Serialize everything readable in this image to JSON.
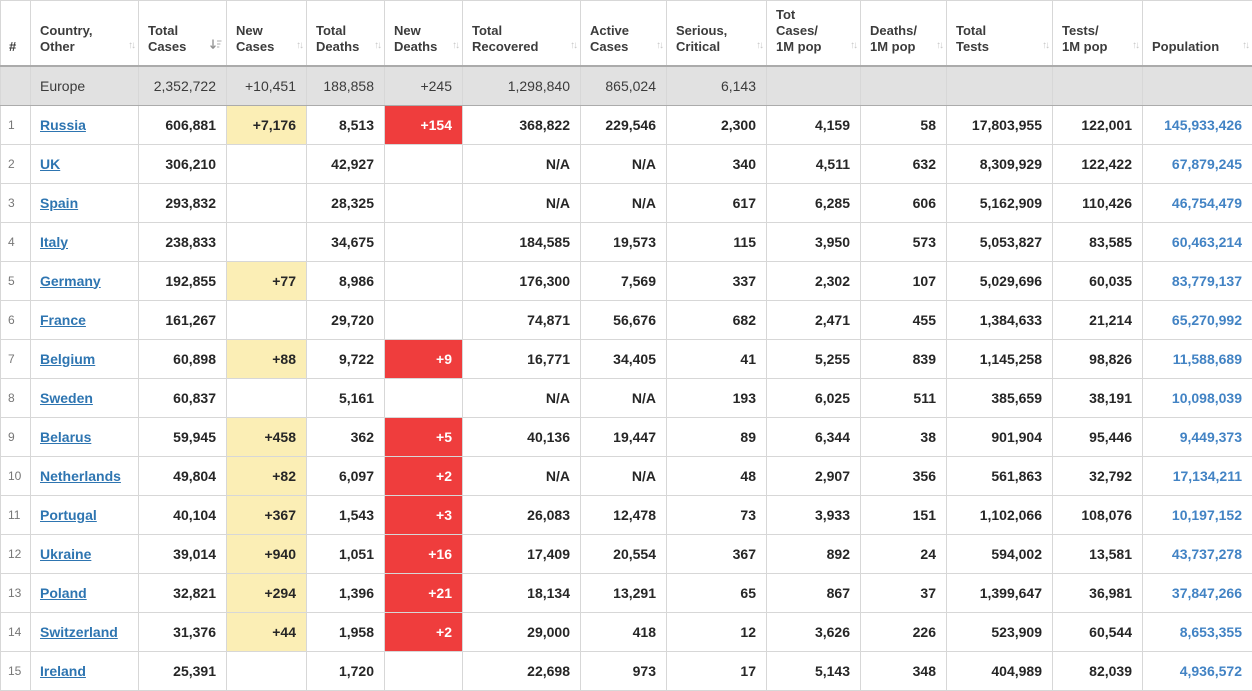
{
  "colors": {
    "new_cases_bg": "#FBEEB5",
    "new_deaths_bg": "#EF3D3D",
    "country_link": "#2E75B1",
    "population_link": "#4283C4",
    "summary_row_bg": "#E1E1E1",
    "grid_border": "#D7D7D7"
  },
  "table": {
    "columns": [
      {
        "id": "rank",
        "label": "#",
        "sort": "none"
      },
      {
        "id": "country",
        "label": "Country,\nOther",
        "sort": "both"
      },
      {
        "id": "total_cases",
        "label": "Total\nCases",
        "sort": "desc"
      },
      {
        "id": "new_cases",
        "label": "New\nCases",
        "sort": "both"
      },
      {
        "id": "total_deaths",
        "label": "Total\nDeaths",
        "sort": "both"
      },
      {
        "id": "new_deaths",
        "label": "New\nDeaths",
        "sort": "both"
      },
      {
        "id": "total_recovered",
        "label": "Total\nRecovered",
        "sort": "both"
      },
      {
        "id": "active_cases",
        "label": "Active\nCases",
        "sort": "both"
      },
      {
        "id": "serious_critical",
        "label": "Serious,\nCritical",
        "sort": "both"
      },
      {
        "id": "cases_per_1m",
        "label": "Tot Cases/\n1M pop",
        "sort": "both"
      },
      {
        "id": "deaths_per_1m",
        "label": "Deaths/\n1M pop",
        "sort": "both"
      },
      {
        "id": "total_tests",
        "label": "Total\nTests",
        "sort": "both"
      },
      {
        "id": "tests_per_1m",
        "label": "Tests/\n1M pop",
        "sort": "both"
      },
      {
        "id": "population",
        "label": "Population",
        "sort": "both"
      }
    ],
    "summary_row": {
      "rank": "",
      "country": "Europe",
      "total_cases": "2,352,722",
      "new_cases": "+10,451",
      "total_deaths": "188,858",
      "new_deaths": "+245",
      "total_recovered": "1,298,840",
      "active_cases": "865,024",
      "serious_critical": "6,143",
      "cases_per_1m": "",
      "deaths_per_1m": "",
      "total_tests": "",
      "tests_per_1m": "",
      "population": ""
    },
    "rows": [
      {
        "rank": "1",
        "country": "Russia",
        "total_cases": "606,881",
        "new_cases": "+7,176",
        "total_deaths": "8,513",
        "new_deaths": "+154",
        "total_recovered": "368,822",
        "active_cases": "229,546",
        "serious_critical": "2,300",
        "cases_per_1m": "4,159",
        "deaths_per_1m": "58",
        "total_tests": "17,803,955",
        "tests_per_1m": "122,001",
        "population": "145,933,426"
      },
      {
        "rank": "2",
        "country": "UK",
        "total_cases": "306,210",
        "new_cases": "",
        "total_deaths": "42,927",
        "new_deaths": "",
        "total_recovered": "N/A",
        "active_cases": "N/A",
        "serious_critical": "340",
        "cases_per_1m": "4,511",
        "deaths_per_1m": "632",
        "total_tests": "8,309,929",
        "tests_per_1m": "122,422",
        "population": "67,879,245"
      },
      {
        "rank": "3",
        "country": "Spain",
        "total_cases": "293,832",
        "new_cases": "",
        "total_deaths": "28,325",
        "new_deaths": "",
        "total_recovered": "N/A",
        "active_cases": "N/A",
        "serious_critical": "617",
        "cases_per_1m": "6,285",
        "deaths_per_1m": "606",
        "total_tests": "5,162,909",
        "tests_per_1m": "110,426",
        "population": "46,754,479"
      },
      {
        "rank": "4",
        "country": "Italy",
        "total_cases": "238,833",
        "new_cases": "",
        "total_deaths": "34,675",
        "new_deaths": "",
        "total_recovered": "184,585",
        "active_cases": "19,573",
        "serious_critical": "115",
        "cases_per_1m": "3,950",
        "deaths_per_1m": "573",
        "total_tests": "5,053,827",
        "tests_per_1m": "83,585",
        "population": "60,463,214"
      },
      {
        "rank": "5",
        "country": "Germany",
        "total_cases": "192,855",
        "new_cases": "+77",
        "total_deaths": "8,986",
        "new_deaths": "",
        "total_recovered": "176,300",
        "active_cases": "7,569",
        "serious_critical": "337",
        "cases_per_1m": "2,302",
        "deaths_per_1m": "107",
        "total_tests": "5,029,696",
        "tests_per_1m": "60,035",
        "population": "83,779,137"
      },
      {
        "rank": "6",
        "country": "France",
        "total_cases": "161,267",
        "new_cases": "",
        "total_deaths": "29,720",
        "new_deaths": "",
        "total_recovered": "74,871",
        "active_cases": "56,676",
        "serious_critical": "682",
        "cases_per_1m": "2,471",
        "deaths_per_1m": "455",
        "total_tests": "1,384,633",
        "tests_per_1m": "21,214",
        "population": "65,270,992"
      },
      {
        "rank": "7",
        "country": "Belgium",
        "total_cases": "60,898",
        "new_cases": "+88",
        "total_deaths": "9,722",
        "new_deaths": "+9",
        "total_recovered": "16,771",
        "active_cases": "34,405",
        "serious_critical": "41",
        "cases_per_1m": "5,255",
        "deaths_per_1m": "839",
        "total_tests": "1,145,258",
        "tests_per_1m": "98,826",
        "population": "11,588,689"
      },
      {
        "rank": "8",
        "country": "Sweden",
        "total_cases": "60,837",
        "new_cases": "",
        "total_deaths": "5,161",
        "new_deaths": "",
        "total_recovered": "N/A",
        "active_cases": "N/A",
        "serious_critical": "193",
        "cases_per_1m": "6,025",
        "deaths_per_1m": "511",
        "total_tests": "385,659",
        "tests_per_1m": "38,191",
        "population": "10,098,039"
      },
      {
        "rank": "9",
        "country": "Belarus",
        "total_cases": "59,945",
        "new_cases": "+458",
        "total_deaths": "362",
        "new_deaths": "+5",
        "total_recovered": "40,136",
        "active_cases": "19,447",
        "serious_critical": "89",
        "cases_per_1m": "6,344",
        "deaths_per_1m": "38",
        "total_tests": "901,904",
        "tests_per_1m": "95,446",
        "population": "9,449,373"
      },
      {
        "rank": "10",
        "country": "Netherlands",
        "total_cases": "49,804",
        "new_cases": "+82",
        "total_deaths": "6,097",
        "new_deaths": "+2",
        "total_recovered": "N/A",
        "active_cases": "N/A",
        "serious_critical": "48",
        "cases_per_1m": "2,907",
        "deaths_per_1m": "356",
        "total_tests": "561,863",
        "tests_per_1m": "32,792",
        "population": "17,134,211"
      },
      {
        "rank": "11",
        "country": "Portugal",
        "total_cases": "40,104",
        "new_cases": "+367",
        "total_deaths": "1,543",
        "new_deaths": "+3",
        "total_recovered": "26,083",
        "active_cases": "12,478",
        "serious_critical": "73",
        "cases_per_1m": "3,933",
        "deaths_per_1m": "151",
        "total_tests": "1,102,066",
        "tests_per_1m": "108,076",
        "population": "10,197,152"
      },
      {
        "rank": "12",
        "country": "Ukraine",
        "total_cases": "39,014",
        "new_cases": "+940",
        "total_deaths": "1,051",
        "new_deaths": "+16",
        "total_recovered": "17,409",
        "active_cases": "20,554",
        "serious_critical": "367",
        "cases_per_1m": "892",
        "deaths_per_1m": "24",
        "total_tests": "594,002",
        "tests_per_1m": "13,581",
        "population": "43,737,278"
      },
      {
        "rank": "13",
        "country": "Poland",
        "total_cases": "32,821",
        "new_cases": "+294",
        "total_deaths": "1,396",
        "new_deaths": "+21",
        "total_recovered": "18,134",
        "active_cases": "13,291",
        "serious_critical": "65",
        "cases_per_1m": "867",
        "deaths_per_1m": "37",
        "total_tests": "1,399,647",
        "tests_per_1m": "36,981",
        "population": "37,847,266"
      },
      {
        "rank": "14",
        "country": "Switzerland",
        "total_cases": "31,376",
        "new_cases": "+44",
        "total_deaths": "1,958",
        "new_deaths": "+2",
        "total_recovered": "29,000",
        "active_cases": "418",
        "serious_critical": "12",
        "cases_per_1m": "3,626",
        "deaths_per_1m": "226",
        "total_tests": "523,909",
        "tests_per_1m": "60,544",
        "population": "8,653,355"
      },
      {
        "rank": "15",
        "country": "Ireland",
        "total_cases": "25,391",
        "new_cases": "",
        "total_deaths": "1,720",
        "new_deaths": "",
        "total_recovered": "22,698",
        "active_cases": "973",
        "serious_critical": "17",
        "cases_per_1m": "5,143",
        "deaths_per_1m": "348",
        "total_tests": "404,989",
        "tests_per_1m": "82,039",
        "population": "4,936,572"
      }
    ]
  }
}
